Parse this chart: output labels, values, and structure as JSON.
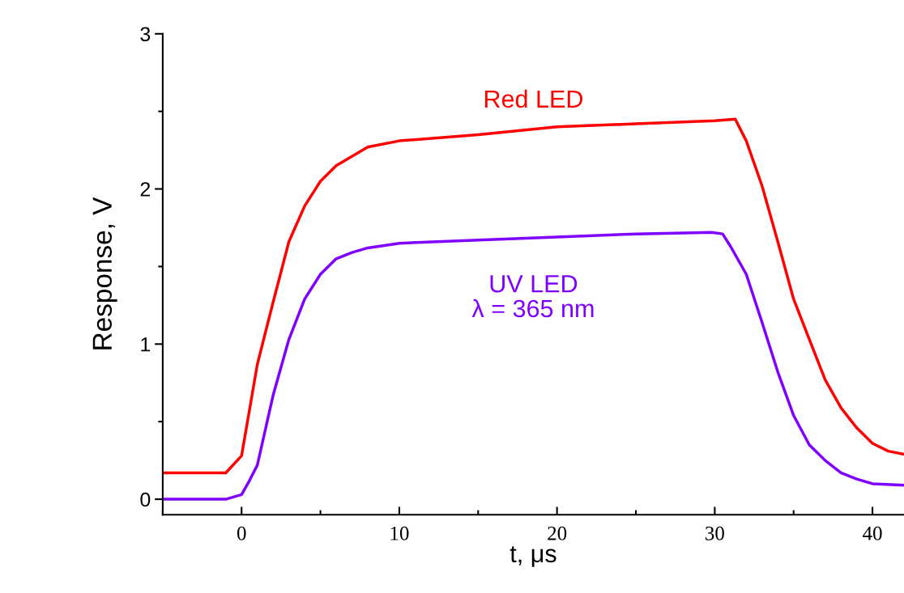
{
  "chart_data": {
    "type": "line",
    "xlabel": "t, μs",
    "ylabel": "Response, V",
    "xlim": [
      -5,
      42
    ],
    "xticks": [
      0,
      10,
      20,
      30,
      40
    ],
    "ylim": [
      -0.1,
      3
    ],
    "yticks": [
      0,
      1,
      2,
      3
    ],
    "grid": false,
    "legend": false,
    "marker": "none",
    "line_style": "solid",
    "series": [
      {
        "name": "Red LED",
        "color": "#ff0000",
        "x": [
          -5,
          -3,
          -1,
          0,
          1,
          2,
          3,
          4,
          5,
          6,
          8,
          10,
          15,
          20,
          25,
          30,
          31.3,
          32,
          33,
          34,
          35,
          36,
          37,
          38,
          39,
          40,
          41,
          42
        ],
        "values": [
          0.17,
          0.17,
          0.17,
          0.28,
          0.87,
          1.27,
          1.66,
          1.89,
          2.05,
          2.15,
          2.27,
          2.31,
          2.35,
          2.4,
          2.42,
          2.44,
          2.45,
          2.31,
          2.02,
          1.66,
          1.29,
          1.03,
          0.77,
          0.59,
          0.46,
          0.36,
          0.31,
          0.29
        ]
      },
      {
        "name": "UV LED\nλ = 365 nm",
        "color": "#8000ff",
        "x": [
          -5,
          -3,
          -1,
          0,
          0.5,
          1,
          2,
          3,
          4,
          5,
          6,
          7,
          8,
          10,
          15,
          20,
          25,
          29.8,
          30.5,
          31,
          32,
          33,
          34,
          35,
          36,
          37,
          38,
          39,
          40,
          42
        ],
        "values": [
          0.0,
          0.0,
          0.0,
          0.03,
          0.12,
          0.22,
          0.67,
          1.03,
          1.29,
          1.45,
          1.55,
          1.59,
          1.62,
          1.65,
          1.67,
          1.69,
          1.71,
          1.72,
          1.71,
          1.63,
          1.45,
          1.14,
          0.82,
          0.54,
          0.35,
          0.25,
          0.17,
          0.13,
          0.1,
          0.09
        ]
      }
    ]
  }
}
